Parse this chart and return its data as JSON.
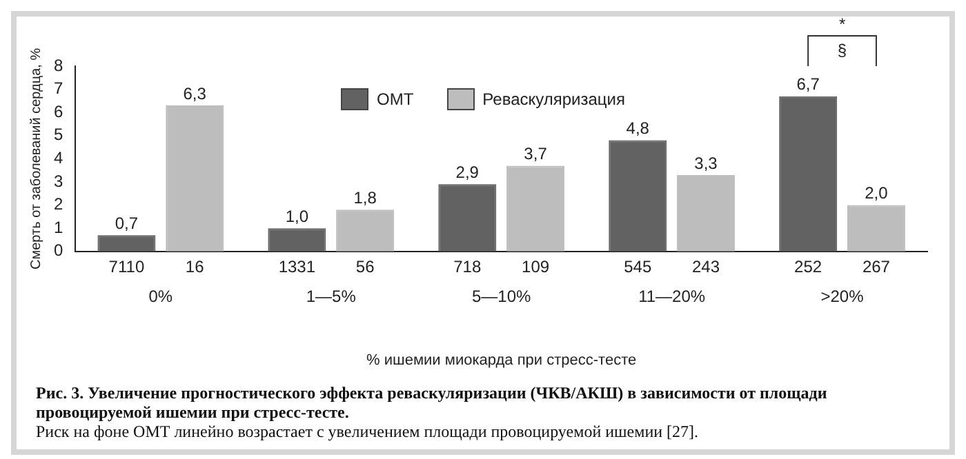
{
  "chart_data": {
    "type": "bar",
    "title": "Рис. 3. Увеличение прогностического эффекта реваскуляризации (ЧКВ/АКШ) в зависимости от площади провоцируемой ишемии при стресс-тесте.",
    "subtitle": "Риск на фоне ОМТ линейно возрастает с увеличением площади провоцируемой ишемии [27].",
    "xlabel": "% ишемии миокарда при стресс-тесте",
    "ylabel": "Смерть от заболеваний сердца, %",
    "categories": [
      "0%",
      "1—5%",
      "5—10%",
      "11—20%",
      ">20%"
    ],
    "series": [
      {
        "name": "ОМТ",
        "color": "#626262",
        "values": [
          0.7,
          1.0,
          2.9,
          4.8,
          6.7
        ],
        "value_labels": [
          "0,7",
          "1,0",
          "2,9",
          "4,8",
          "6,7"
        ]
      },
      {
        "name": "Реваскуляризация",
        "color": "#bdbdbd",
        "values": [
          6.3,
          1.8,
          3.7,
          3.3,
          2.0
        ],
        "value_labels": [
          "6,3",
          "1,8",
          "3,7",
          "3,3",
          "2,0"
        ]
      }
    ],
    "ylim": [
      0,
      8
    ],
    "yticks": [
      0,
      1,
      2,
      3,
      4,
      5,
      6,
      7,
      8
    ],
    "legend": "top",
    "annotations": [
      {
        "text": "7110",
        "x": "0%",
        "y": 0
      },
      {
        "text": "16",
        "x": "0%",
        "y": 0
      },
      {
        "text": "1331",
        "x": "1—5%",
        "y": 0
      },
      {
        "text": "56",
        "x": "1—5%",
        "y": 0
      },
      {
        "text": "718",
        "x": "5—10%",
        "y": 0
      },
      {
        "text": "109",
        "x": "5—10%",
        "y": 0
      },
      {
        "text": "545",
        "x": "11—20%",
        "y": 0
      },
      {
        "text": "243",
        "x": "11—20%",
        "y": 0
      },
      {
        "text": "252",
        "x": ">20%",
        "y": 0
      },
      {
        "text": "267",
        "x": ">20%",
        "y": 0
      },
      "*",
      "§"
    ]
  }
}
